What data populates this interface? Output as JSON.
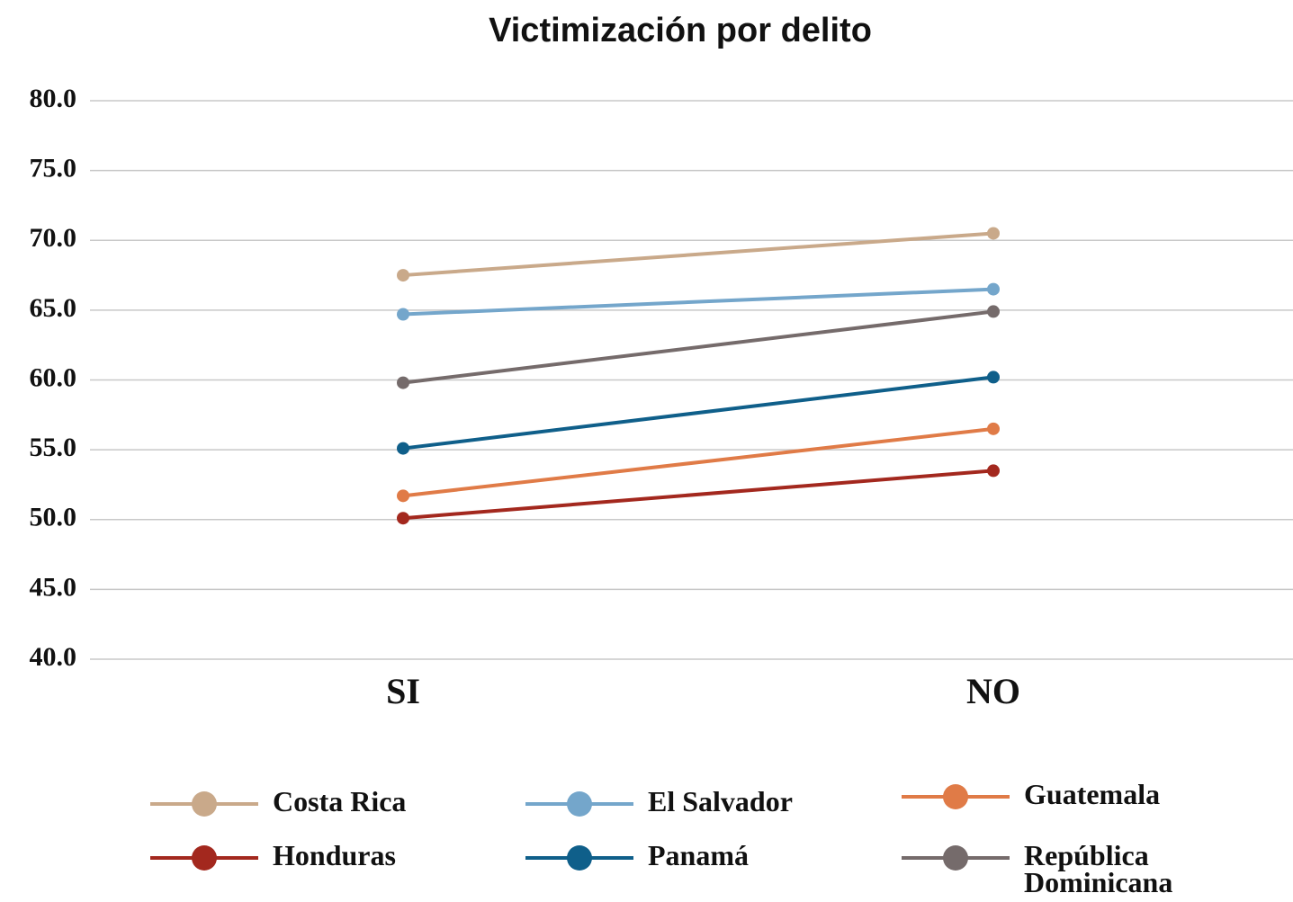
{
  "chart_data": {
    "type": "line",
    "title": "Victimización por delito",
    "categories": [
      "SI",
      "NO"
    ],
    "series": [
      {
        "name": "Costa Rica",
        "color": "#c9a98a",
        "values": [
          67.5,
          70.5
        ]
      },
      {
        "name": "El Salvador",
        "color": "#74a6cb",
        "values": [
          64.7,
          66.5
        ]
      },
      {
        "name": "Guatemala",
        "color": "#e07b47",
        "values": [
          51.7,
          56.5
        ]
      },
      {
        "name": "Honduras",
        "color": "#a3281e",
        "values": [
          50.1,
          53.5
        ]
      },
      {
        "name": "Panamá",
        "color": "#0f5f8a",
        "values": [
          55.1,
          60.2
        ]
      },
      {
        "name": "República Dominicana",
        "color": "#756b6b",
        "values": [
          59.8,
          64.9
        ]
      }
    ],
    "ylim": [
      40,
      80
    ],
    "yticks": [
      {
        "value": 40,
        "label": "40.0"
      },
      {
        "value": 45,
        "label": "45.0"
      },
      {
        "value": 50,
        "label": "50.0"
      },
      {
        "value": 55,
        "label": "55.0"
      },
      {
        "value": 60,
        "label": "60.0"
      },
      {
        "value": 65,
        "label": "65.0"
      },
      {
        "value": 70,
        "label": "70.0"
      },
      {
        "value": 75,
        "label": "75.0"
      },
      {
        "value": 80,
        "label": "80.0"
      }
    ],
    "grid": true
  }
}
